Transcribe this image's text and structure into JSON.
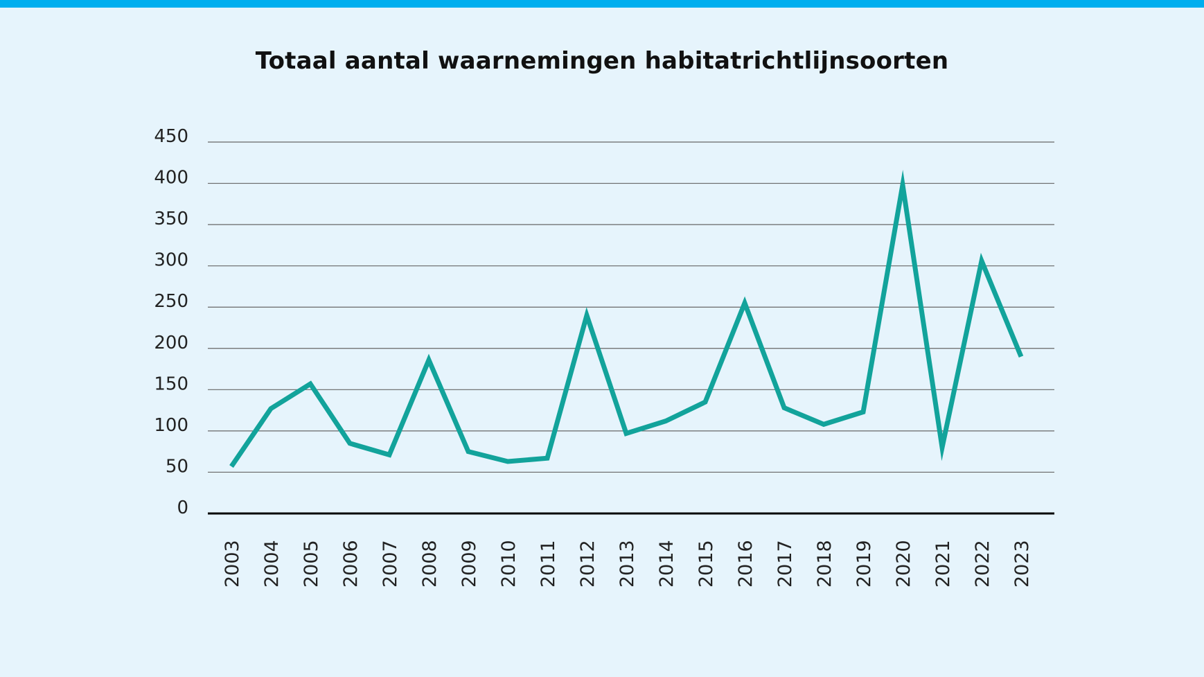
{
  "colors": {
    "top_bar": "#00aeef",
    "background": "#e6f4fc",
    "line": "#12a39b",
    "grid": "#666666",
    "axis": "#000000"
  },
  "chart_data": {
    "type": "line",
    "title": "Totaal aantal waarnemingen habitatrichtlijnsoorten",
    "xlabel": "",
    "ylabel": "",
    "ylim": [
      0,
      450
    ],
    "yticks": [
      "0",
      "50",
      "100",
      "150",
      "200",
      "250",
      "300",
      "350",
      "400",
      "450"
    ],
    "grid": true,
    "legend": "none",
    "x": [
      "2003",
      "2004",
      "2005",
      "2006",
      "2007",
      "2008",
      "2009",
      "2010",
      "2011",
      "2012",
      "2013",
      "2014",
      "2015",
      "2016",
      "2017",
      "2018",
      "2019",
      "2020",
      "2021",
      "2022",
      "2023"
    ],
    "series": [
      {
        "values": [
          57,
          127,
          157,
          85,
          71,
          186,
          75,
          63,
          67,
          240,
          97,
          112,
          135,
          255,
          128,
          108,
          123,
          398,
          80,
          306,
          190
        ]
      }
    ]
  }
}
